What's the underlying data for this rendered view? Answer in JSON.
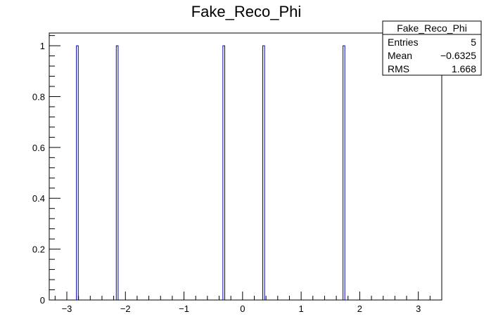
{
  "chart_data": {
    "type": "bar",
    "title": "Fake_Reco_Phi",
    "xlabel": "",
    "ylabel": "",
    "xlim": [
      -3.3,
      3.4
    ],
    "ylim": [
      0,
      1.05
    ],
    "bin_width": 0.0314,
    "x": [
      -2.82,
      -2.14,
      -0.32,
      0.36,
      1.73
    ],
    "values": [
      1,
      1,
      1,
      1,
      1
    ],
    "x_major_ticks": [
      -3,
      -2,
      -1,
      0,
      1,
      2,
      3
    ],
    "x_tick_labels": [
      "−3",
      "−2",
      "−1",
      "0",
      "1",
      "2",
      "3"
    ],
    "y_major_ticks": [
      0,
      0.2,
      0.4,
      0.6,
      0.8,
      1
    ],
    "y_tick_labels": [
      "0",
      "0.2",
      "0.4",
      "0.6",
      "0.8",
      "1"
    ],
    "grid": false,
    "legend": "none",
    "line_color": "#0000b4",
    "stats_box": {
      "position": "top-right",
      "name": "Fake_Reco_Phi",
      "rows": [
        {
          "label": "Entries",
          "value": "5"
        },
        {
          "label": "Mean",
          "value": "−0.6325"
        },
        {
          "label": "RMS",
          "value": "1.668"
        }
      ]
    }
  }
}
